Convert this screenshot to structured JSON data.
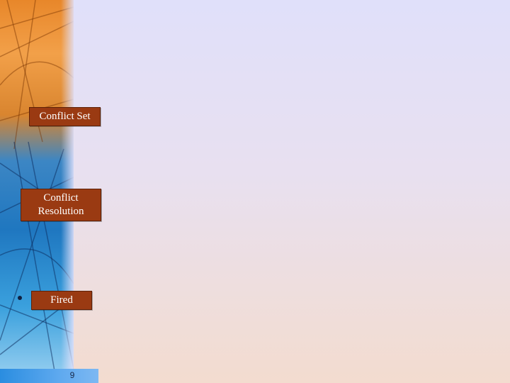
{
  "diagram": {
    "nodes": [
      {
        "id": "conflict-set",
        "label": "Conflict Set"
      },
      {
        "id": "conflict-resolution",
        "label": "Conflict Resolution"
      },
      {
        "id": "fired",
        "label": "Fired"
      }
    ]
  },
  "footer": {
    "page_number": "9"
  },
  "colors": {
    "box_fill": "#9a3a12",
    "box_text": "#ffffff",
    "page_bar": "#5ea9ef"
  },
  "decoration": {
    "sidebar": "orange-blue-abstract-sphere-image"
  }
}
